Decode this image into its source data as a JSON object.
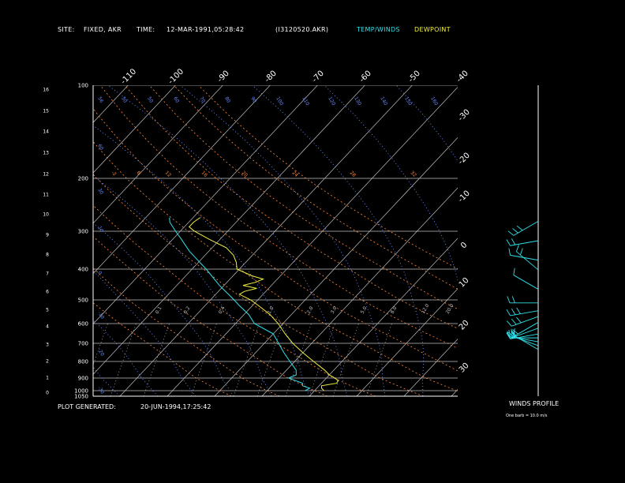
{
  "header": {
    "site_label": "SITE:",
    "site_value": "FIXED, AKR",
    "time_label": "TIME:",
    "time_value": "12-MAR-1991,05:28:42",
    "file": "(I3120520.AKR)",
    "temp_winds": "TEMP/WINDS",
    "dewpoint": "DEWPOINT"
  },
  "footer": {
    "plot_generated_label": "PLOT GENERATED:",
    "plot_generated_value": "20-JUN-1994,17:25:42",
    "winds_profile": "WINDS PROFILE",
    "barb_note": "One barb = 10.0 m/s"
  },
  "colors": {
    "temperature": "#f0f040",
    "dewpoint": "#2fe0ea",
    "winds": "#2fe0ea",
    "dry_adiabat": "#ff8a3d",
    "moist_adiabat": "#6a8cff",
    "mixing_ratio": "#c0c0c0",
    "isotherm": "#c0c0c0",
    "isobar": "#c0c0c0"
  },
  "chart_data": {
    "type": "skew-t",
    "pressure_axis_labels": [
      "100",
      "200",
      "300",
      "400",
      "500",
      "600",
      "700",
      "800",
      "900",
      "1000",
      "1050"
    ],
    "height_axis_labels": [
      "0",
      "1",
      "2",
      "3",
      "4",
      "5",
      "6",
      "7",
      "8",
      "9",
      "10",
      "11",
      "12",
      "13",
      "14",
      "15",
      "16"
    ],
    "top_temperature_labels": [
      "-110",
      "-100",
      "-90",
      "-80",
      "-70",
      "-60",
      "-50",
      "-40"
    ],
    "right_temperature_labels": [
      "-30",
      "-20",
      "-10",
      "0",
      "10",
      "20",
      "30"
    ],
    "dry_adiabat_labels": [
      "-2",
      "6",
      "12",
      "16",
      "20",
      "24",
      "28",
      "32"
    ],
    "moist_adiabat_labels": [
      "56",
      "50",
      "50",
      "60",
      "70",
      "80",
      "90",
      "100",
      "110",
      "120",
      "130",
      "140",
      "150",
      "160"
    ],
    "left_moist_labels": [
      "60",
      "30",
      "10",
      "0",
      "-10",
      "-20",
      "-30"
    ],
    "mixing_ratio_labels": [
      "0.1",
      "0.2",
      "0.4",
      "1.0",
      "2.0",
      "3.0",
      "5.0",
      "8.0",
      "12.0",
      "20.0"
    ],
    "temperature_profile": [
      {
        "p": 1000,
        "t": 2.0
      },
      {
        "p": 980,
        "t": 1.0
      },
      {
        "p": 960,
        "t": 0.5
      },
      {
        "p": 940,
        "t": 3.2
      },
      {
        "p": 920,
        "t": 3.0
      },
      {
        "p": 900,
        "t": 1.8
      },
      {
        "p": 880,
        "t": 0.0
      },
      {
        "p": 850,
        "t": -2.0
      },
      {
        "p": 800,
        "t": -6.0
      },
      {
        "p": 750,
        "t": -10.0
      },
      {
        "p": 700,
        "t": -14.0
      },
      {
        "p": 650,
        "t": -17.5
      },
      {
        "p": 600,
        "t": -21.0
      },
      {
        "p": 560,
        "t": -24.5
      },
      {
        "p": 520,
        "t": -29.0
      },
      {
        "p": 500,
        "t": -31.5
      },
      {
        "p": 480,
        "t": -35.0
      },
      {
        "p": 470,
        "t": -34.5
      },
      {
        "p": 460,
        "t": -32.5
      },
      {
        "p": 450,
        "t": -36.0
      },
      {
        "p": 440,
        "t": -34.0
      },
      {
        "p": 430,
        "t": -33.0
      },
      {
        "p": 420,
        "t": -36.0
      },
      {
        "p": 400,
        "t": -40.5
      },
      {
        "p": 380,
        "t": -42.0
      },
      {
        "p": 360,
        "t": -44.0
      },
      {
        "p": 340,
        "t": -47.0
      },
      {
        "p": 320,
        "t": -52.0
      },
      {
        "p": 300,
        "t": -57.0
      },
      {
        "p": 290,
        "t": -59.0
      },
      {
        "p": 280,
        "t": -59.0
      },
      {
        "p": 270,
        "t": -58.5
      }
    ],
    "dewpoint_profile": [
      {
        "p": 1000,
        "t": -2.0
      },
      {
        "p": 980,
        "t": -1.5
      },
      {
        "p": 960,
        "t": -3.5
      },
      {
        "p": 940,
        "t": -4.0
      },
      {
        "p": 920,
        "t": -6.0
      },
      {
        "p": 900,
        "t": -8.0
      },
      {
        "p": 880,
        "t": -7.0
      },
      {
        "p": 850,
        "t": -8.0
      },
      {
        "p": 800,
        "t": -11.0
      },
      {
        "p": 750,
        "t": -14.0
      },
      {
        "p": 700,
        "t": -17.0
      },
      {
        "p": 650,
        "t": -20.0
      },
      {
        "p": 600,
        "t": -26.0
      },
      {
        "p": 560,
        "t": -29.0
      },
      {
        "p": 520,
        "t": -33.0
      },
      {
        "p": 500,
        "t": -35.0
      },
      {
        "p": 450,
        "t": -41.0
      },
      {
        "p": 400,
        "t": -47.0
      },
      {
        "p": 350,
        "t": -54.0
      },
      {
        "p": 320,
        "t": -58.0
      },
      {
        "p": 300,
        "t": -61.0
      },
      {
        "p": 280,
        "t": -64.0
      },
      {
        "p": 270,
        "t": -65.0
      }
    ],
    "wind_profile": [
      {
        "h": 2.4,
        "dir": 300,
        "spd": 8
      },
      {
        "h": 2.6,
        "dir": 290,
        "spd": 12
      },
      {
        "h": 2.8,
        "dir": 280,
        "spd": 15
      },
      {
        "h": 3.0,
        "dir": 270,
        "spd": 18
      },
      {
        "h": 3.2,
        "dir": 260,
        "spd": 20
      },
      {
        "h": 3.5,
        "dir": 250,
        "spd": 22
      },
      {
        "h": 3.8,
        "dir": 240,
        "spd": 24
      },
      {
        "h": 4.1,
        "dir": 250,
        "spd": 26
      },
      {
        "h": 4.4,
        "dir": 260,
        "spd": 28
      },
      {
        "h": 4.8,
        "dir": 270,
        "spd": 22
      },
      {
        "h": 5.5,
        "dir": 300,
        "spd": 10
      },
      {
        "h": 6.5,
        "dir": 310,
        "spd": 15
      },
      {
        "h": 7.0,
        "dir": 280,
        "spd": 12
      },
      {
        "h": 8.0,
        "dir": 260,
        "spd": 20
      },
      {
        "h": 9.0,
        "dir": 240,
        "spd": 25
      }
    ]
  }
}
